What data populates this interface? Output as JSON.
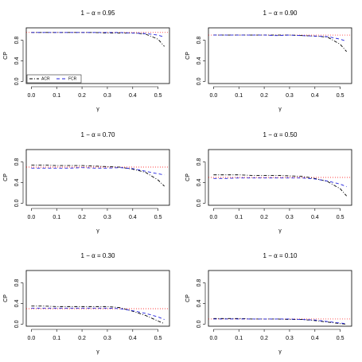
{
  "chart_data": [
    {
      "type": "line",
      "title": "1 − α = 0.95",
      "x_label": "γ",
      "y_label": "CP",
      "reference": 0.95,
      "reference_color": "#ff0000",
      "legend": "bottom left",
      "x": [
        0,
        0.05,
        0.1,
        0.15,
        0.2,
        0.25,
        0.3,
        0.35,
        0.4,
        0.45,
        0.5,
        0.525
      ],
      "xlim": [
        -0.02,
        0.545
      ],
      "ylim": [
        -0.04,
        1.04
      ],
      "xticks": [
        {
          "value": 0,
          "label": "0.0"
        },
        {
          "value": 0.1,
          "label": "0.1"
        },
        {
          "value": 0.2,
          "label": "0.2"
        },
        {
          "value": 0.3,
          "label": "0.3"
        },
        {
          "value": 0.4,
          "label": "0.4"
        },
        {
          "value": 0.5,
          "label": "0.5"
        }
      ],
      "yticks": [
        {
          "value": 0,
          "label": "0.0"
        },
        {
          "value": 0.4,
          "label": "0.4"
        },
        {
          "value": 0.8,
          "label": "0.8"
        }
      ],
      "series": [
        {
          "name": "ACR",
          "color": "#000000",
          "dash": "dotdash",
          "values": [
            0.95,
            0.95,
            0.95,
            0.95,
            0.95,
            0.95,
            0.94,
            0.94,
            0.94,
            0.92,
            0.82,
            0.68
          ]
        },
        {
          "name": "FCR",
          "color": "#2222dd",
          "dash": "dashed",
          "values": [
            0.95,
            0.95,
            0.95,
            0.95,
            0.95,
            0.95,
            0.95,
            0.95,
            0.94,
            0.93,
            0.9,
            0.86
          ]
        }
      ]
    },
    {
      "type": "line",
      "title": "1 − α = 0.90",
      "x_label": "γ",
      "y_label": "CP",
      "reference": 0.9,
      "reference_color": "#ff0000",
      "x": [
        0,
        0.05,
        0.1,
        0.15,
        0.2,
        0.25,
        0.3,
        0.35,
        0.4,
        0.45,
        0.5,
        0.525
      ],
      "xlim": [
        -0.02,
        0.545
      ],
      "ylim": [
        -0.04,
        1.04
      ],
      "xticks": [
        {
          "value": 0,
          "label": "0.0"
        },
        {
          "value": 0.1,
          "label": "0.1"
        },
        {
          "value": 0.2,
          "label": "0.2"
        },
        {
          "value": 0.3,
          "label": "0.3"
        },
        {
          "value": 0.4,
          "label": "0.4"
        },
        {
          "value": 0.5,
          "label": "0.5"
        }
      ],
      "yticks": [
        {
          "value": 0,
          "label": "0.0"
        },
        {
          "value": 0.4,
          "label": "0.4"
        },
        {
          "value": 0.8,
          "label": "0.8"
        }
      ],
      "series": [
        {
          "color": "#000000",
          "dash": "dotdash",
          "values": [
            0.9,
            0.9,
            0.9,
            0.9,
            0.9,
            0.9,
            0.9,
            0.89,
            0.88,
            0.86,
            0.72,
            0.58
          ]
        },
        {
          "color": "#2222dd",
          "dash": "dashed",
          "values": [
            0.9,
            0.9,
            0.9,
            0.9,
            0.9,
            0.89,
            0.9,
            0.89,
            0.88,
            0.87,
            0.82,
            0.78
          ]
        }
      ]
    },
    {
      "type": "line",
      "title": "1 − α = 0.70",
      "x_label": "γ",
      "y_label": "CP",
      "reference": 0.7,
      "reference_color": "#ff0000",
      "x": [
        0,
        0.05,
        0.1,
        0.15,
        0.2,
        0.25,
        0.3,
        0.35,
        0.4,
        0.45,
        0.5,
        0.525
      ],
      "xlim": [
        -0.02,
        0.545
      ],
      "ylim": [
        -0.04,
        1.04
      ],
      "xticks": [
        {
          "value": 0,
          "label": "0.0"
        },
        {
          "value": 0.1,
          "label": "0.1"
        },
        {
          "value": 0.2,
          "label": "0.2"
        },
        {
          "value": 0.3,
          "label": "0.3"
        },
        {
          "value": 0.4,
          "label": "0.4"
        },
        {
          "value": 0.5,
          "label": "0.5"
        }
      ],
      "yticks": [
        {
          "value": 0,
          "label": "0.0"
        },
        {
          "value": 0.4,
          "label": "0.4"
        },
        {
          "value": 0.8,
          "label": "0.8"
        }
      ],
      "series": [
        {
          "color": "#000000",
          "dash": "dotdash",
          "values": [
            0.74,
            0.74,
            0.73,
            0.73,
            0.73,
            0.72,
            0.71,
            0.7,
            0.66,
            0.6,
            0.45,
            0.33
          ]
        },
        {
          "color": "#2222dd",
          "dash": "dashed",
          "values": [
            0.68,
            0.68,
            0.68,
            0.68,
            0.69,
            0.68,
            0.68,
            0.69,
            0.67,
            0.62,
            0.57,
            0.55
          ]
        }
      ]
    },
    {
      "type": "line",
      "title": "1 − α = 0.50",
      "x_label": "γ",
      "y_label": "CP",
      "reference": 0.5,
      "reference_color": "#ff0000",
      "x": [
        0,
        0.05,
        0.1,
        0.15,
        0.2,
        0.25,
        0.3,
        0.35,
        0.4,
        0.45,
        0.5,
        0.525
      ],
      "xlim": [
        -0.02,
        0.545
      ],
      "ylim": [
        -0.04,
        1.04
      ],
      "xticks": [
        {
          "value": 0,
          "label": "0.0"
        },
        {
          "value": 0.1,
          "label": "0.1"
        },
        {
          "value": 0.2,
          "label": "0.2"
        },
        {
          "value": 0.3,
          "label": "0.3"
        },
        {
          "value": 0.4,
          "label": "0.4"
        },
        {
          "value": 0.5,
          "label": "0.5"
        }
      ],
      "yticks": [
        {
          "value": 0,
          "label": "0.0"
        },
        {
          "value": 0.4,
          "label": "0.4"
        },
        {
          "value": 0.8,
          "label": "0.8"
        }
      ],
      "series": [
        {
          "color": "#000000",
          "dash": "dotdash",
          "values": [
            0.55,
            0.55,
            0.55,
            0.54,
            0.54,
            0.54,
            0.53,
            0.52,
            0.48,
            0.42,
            0.28,
            0.14
          ]
        },
        {
          "color": "#2222dd",
          "dash": "dashed",
          "values": [
            0.48,
            0.48,
            0.49,
            0.49,
            0.49,
            0.49,
            0.49,
            0.49,
            0.47,
            0.43,
            0.37,
            0.32
          ]
        }
      ]
    },
    {
      "type": "line",
      "title": "1 − α = 0.30",
      "x_label": "γ",
      "y_label": "CP",
      "reference": 0.3,
      "reference_color": "#ff0000",
      "x": [
        0,
        0.05,
        0.1,
        0.15,
        0.2,
        0.25,
        0.3,
        0.35,
        0.4,
        0.45,
        0.5,
        0.525
      ],
      "xlim": [
        -0.02,
        0.545
      ],
      "ylim": [
        -0.04,
        1.04
      ],
      "xticks": [
        {
          "value": 0,
          "label": "0.0"
        },
        {
          "value": 0.1,
          "label": "0.1"
        },
        {
          "value": 0.2,
          "label": "0.2"
        },
        {
          "value": 0.3,
          "label": "0.3"
        },
        {
          "value": 0.4,
          "label": "0.4"
        },
        {
          "value": 0.5,
          "label": "0.5"
        }
      ],
      "yticks": [
        {
          "value": 0,
          "label": "0.0"
        },
        {
          "value": 0.4,
          "label": "0.4"
        },
        {
          "value": 0.8,
          "label": "0.8"
        }
      ],
      "series": [
        {
          "color": "#000000",
          "dash": "dotdash",
          "values": [
            0.35,
            0.35,
            0.34,
            0.34,
            0.34,
            0.34,
            0.34,
            0.32,
            0.25,
            0.17,
            0.06,
            0.01
          ]
        },
        {
          "color": "#2222dd",
          "dash": "dashed",
          "values": [
            0.31,
            0.31,
            0.31,
            0.31,
            0.31,
            0.31,
            0.31,
            0.3,
            0.26,
            0.21,
            0.14,
            0.09
          ]
        }
      ]
    },
    {
      "type": "line",
      "title": "1 − α = 0.10",
      "x_label": "γ",
      "y_label": "CP",
      "reference": 0.1,
      "reference_color": "#ff0000",
      "x": [
        0,
        0.05,
        0.1,
        0.15,
        0.2,
        0.25,
        0.3,
        0.35,
        0.4,
        0.45,
        0.5,
        0.525
      ],
      "xlim": [
        -0.02,
        0.545
      ],
      "ylim": [
        -0.04,
        1.04
      ],
      "xticks": [
        {
          "value": 0,
          "label": "0.0"
        },
        {
          "value": 0.1,
          "label": "0.1"
        },
        {
          "value": 0.2,
          "label": "0.2"
        },
        {
          "value": 0.3,
          "label": "0.3"
        },
        {
          "value": 0.4,
          "label": "0.4"
        },
        {
          "value": 0.5,
          "label": "0.5"
        }
      ],
      "yticks": [
        {
          "value": 0,
          "label": "0.0"
        },
        {
          "value": 0.4,
          "label": "0.4"
        },
        {
          "value": 0.8,
          "label": "0.8"
        }
      ],
      "series": [
        {
          "color": "#000000",
          "dash": "dotdash",
          "values": [
            0.11,
            0.11,
            0.11,
            0.1,
            0.1,
            0.1,
            0.09,
            0.09,
            0.07,
            0.04,
            0.01,
            0.0
          ]
        },
        {
          "color": "#2222dd",
          "dash": "dashed",
          "values": [
            0.1,
            0.1,
            0.1,
            0.1,
            0.1,
            0.1,
            0.1,
            0.09,
            0.08,
            0.05,
            0.02,
            0.01
          ]
        }
      ]
    }
  ]
}
